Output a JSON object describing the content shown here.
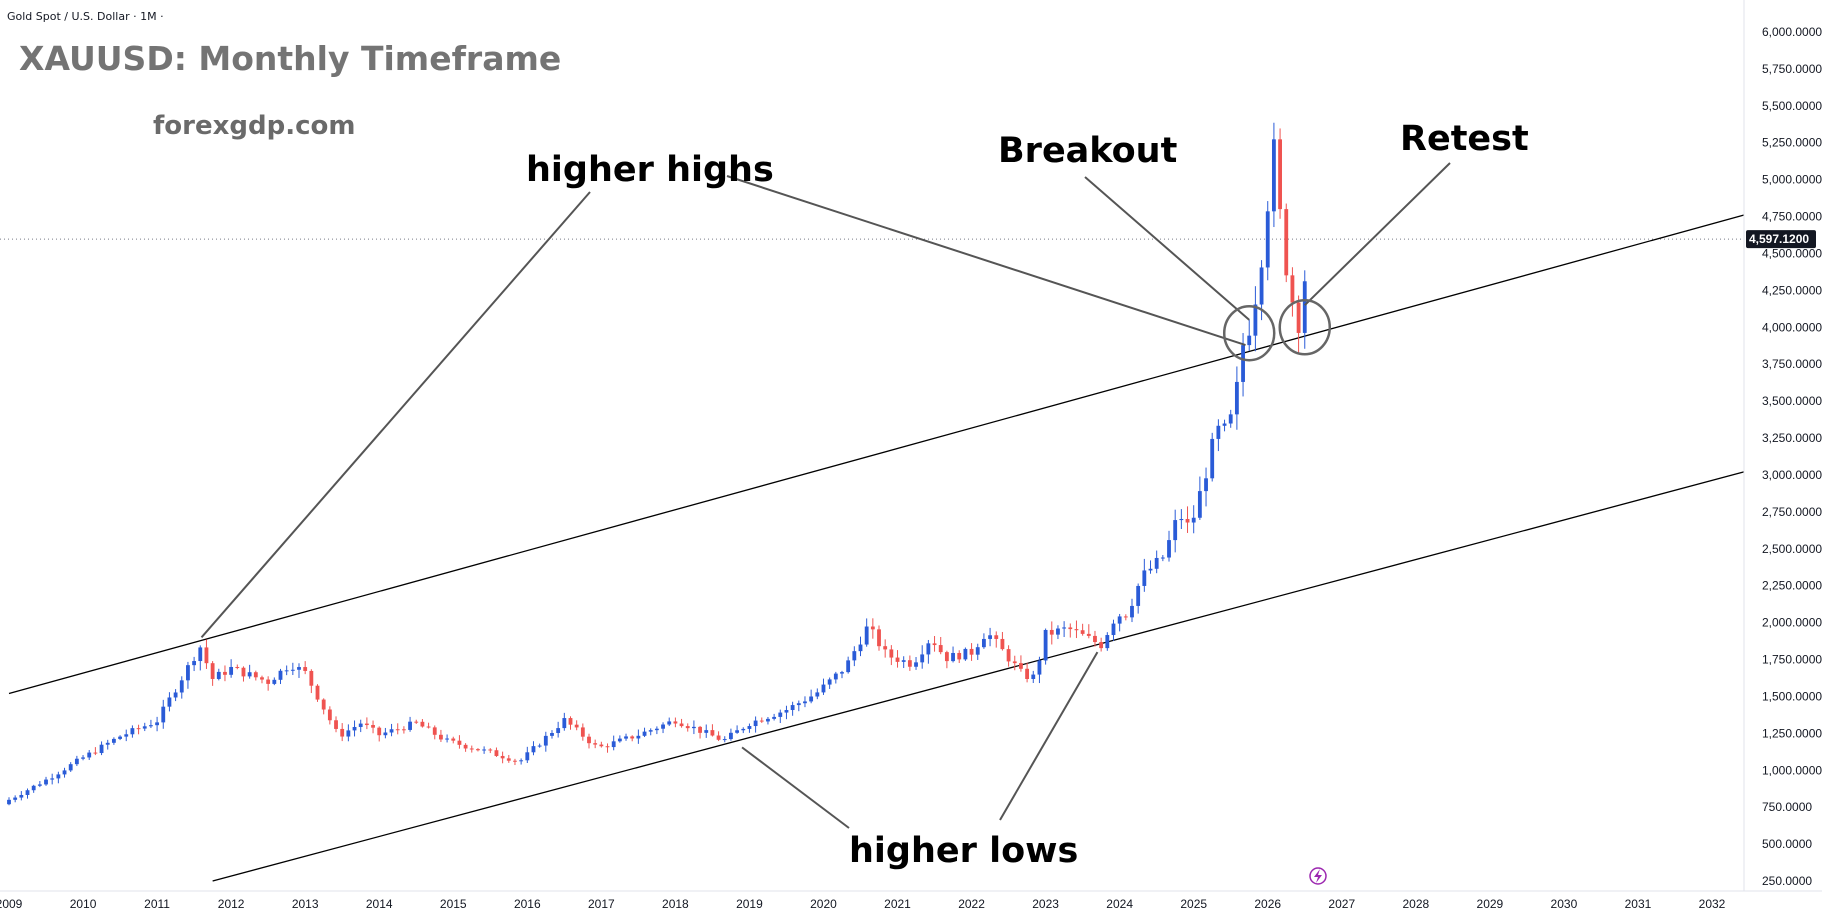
{
  "header": {
    "instrument": "Gold Spot / U.S. Dollar · 1M ·",
    "title": "XAUUSD: Monthly Timeframe",
    "website": "forexgdp.com"
  },
  "annotations": {
    "higher_highs": "higher highs",
    "higher_lows": "higher lows",
    "breakout": "Breakout",
    "retest": "Retest"
  },
  "price_axis": {
    "current_price_label": "4,597.1200"
  },
  "icons": {
    "bottom_marker": "lightning-icon"
  },
  "colors": {
    "up": "#2a5bd7",
    "down": "#ef5350",
    "badge": "#131722",
    "marker": "#9c27b0"
  },
  "chart_data": {
    "type": "candlestick",
    "title": "XAUUSD: Monthly Timeframe",
    "ylim": [
      200,
      6050
    ],
    "yticks": [
      250,
      500,
      750,
      1000,
      1250,
      1500,
      1750,
      2000,
      2250,
      2500,
      2750,
      3000,
      3250,
      3500,
      3750,
      4000,
      4250,
      4500,
      4750,
      5000,
      5250,
      5500,
      5750,
      6000
    ],
    "ytick_labels": [
      "250.0000",
      "500.0000",
      "750.0000",
      "1,000.0000",
      "1,250.0000",
      "1,500.0000",
      "1,750.0000",
      "2,000.0000",
      "2,250.0000",
      "2,500.0000",
      "2,750.0000",
      "3,000.0000",
      "3,250.0000",
      "3,500.0000",
      "3,750.0000",
      "4,000.0000",
      "4,250.0000",
      "4,500.0000",
      "4,750.0000",
      "5,000.0000",
      "5,250.0000",
      "5,500.0000",
      "5,750.0000",
      "6,000.0000"
    ],
    "xlim": [
      2009.0,
      2032.5
    ],
    "xticks": [
      2009,
      2010,
      2011,
      2012,
      2013,
      2014,
      2015,
      2016,
      2017,
      2018,
      2019,
      2020,
      2021,
      2022,
      2023,
      2024,
      2025,
      2026,
      2027,
      2028,
      2029,
      2030,
      2031,
      2032
    ],
    "last_price": 4597.12,
    "close_anchors": [
      [
        2009.0,
        800
      ],
      [
        2009.5,
        935
      ],
      [
        2010.0,
        1085
      ],
      [
        2010.5,
        1230
      ],
      [
        2011.0,
        1335
      ],
      [
        2011.58,
        1840
      ],
      [
        2011.75,
        1620
      ],
      [
        2012.0,
        1690
      ],
      [
        2012.5,
        1600
      ],
      [
        2012.8,
        1720
      ],
      [
        2013.0,
        1660
      ],
      [
        2013.45,
        1230
      ],
      [
        2013.75,
        1320
      ],
      [
        2014.0,
        1240
      ],
      [
        2014.5,
        1320
      ],
      [
        2014.9,
        1200
      ],
      [
        2015.5,
        1120
      ],
      [
        2015.9,
        1060
      ],
      [
        2016.5,
        1340
      ],
      [
        2016.95,
        1150
      ],
      [
        2017.5,
        1240
      ],
      [
        2018.0,
        1340
      ],
      [
        2018.65,
        1200
      ],
      [
        2019.0,
        1320
      ],
      [
        2019.5,
        1410
      ],
      [
        2019.9,
        1520
      ],
      [
        2020.3,
        1700
      ],
      [
        2020.6,
        1975
      ],
      [
        2020.85,
        1780
      ],
      [
        2021.2,
        1720
      ],
      [
        2021.45,
        1900
      ],
      [
        2021.65,
        1760
      ],
      [
        2022.0,
        1800
      ],
      [
        2022.2,
        1940
      ],
      [
        2022.7,
        1640
      ],
      [
        2022.85,
        1630
      ],
      [
        2023.0,
        1920
      ],
      [
        2023.3,
        1960
      ],
      [
        2023.75,
        1850
      ],
      [
        2023.95,
        2050
      ],
      [
        2024.1,
        2060
      ],
      [
        2024.3,
        2310
      ],
      [
        2024.6,
        2450
      ],
      [
        2024.8,
        2740
      ],
      [
        2024.95,
        2630
      ],
      [
        2025.2,
        3080
      ],
      [
        2025.3,
        3300
      ],
      [
        2025.45,
        3300
      ],
      [
        2025.55,
        3450
      ],
      [
        2025.65,
        3860
      ],
      [
        2025.75,
        4000
      ],
      [
        2025.85,
        4250
      ],
      [
        2025.95,
        4600
      ],
      [
        2026.0,
        4850
      ],
      [
        2026.1,
        5270
      ],
      [
        2026.2,
        4500
      ],
      [
        2026.3,
        4320
      ],
      [
        2026.38,
        3990
      ],
      [
        2026.45,
        4070
      ],
      [
        2026.55,
        4597.12
      ]
    ],
    "trendlines": [
      {
        "name": "upper",
        "points": [
          [
            2009.0,
            1520
          ],
          [
            2032.5,
            4770
          ]
        ]
      },
      {
        "name": "lower",
        "points": [
          [
            2011.75,
            250
          ],
          [
            2032.5,
            3030
          ]
        ]
      }
    ],
    "annotations": [
      {
        "text": "higher highs",
        "points_to": [
          2011.6,
          1900
        ]
      },
      {
        "text": "higher highs",
        "points_to": [
          2025.7,
          3880
        ]
      },
      {
        "text": "higher lows",
        "points_to": [
          2018.9,
          1155
        ]
      },
      {
        "text": "higher lows",
        "points_to": [
          2023.7,
          1800
        ]
      },
      {
        "text": "Breakout",
        "points_to": [
          2025.75,
          4050
        ]
      },
      {
        "text": "Retest",
        "points_to": [
          2026.5,
          4150
        ]
      }
    ],
    "circles": [
      [
        2025.75,
        3960
      ],
      [
        2026.5,
        4000
      ]
    ],
    "grid": false,
    "legend": "none"
  }
}
